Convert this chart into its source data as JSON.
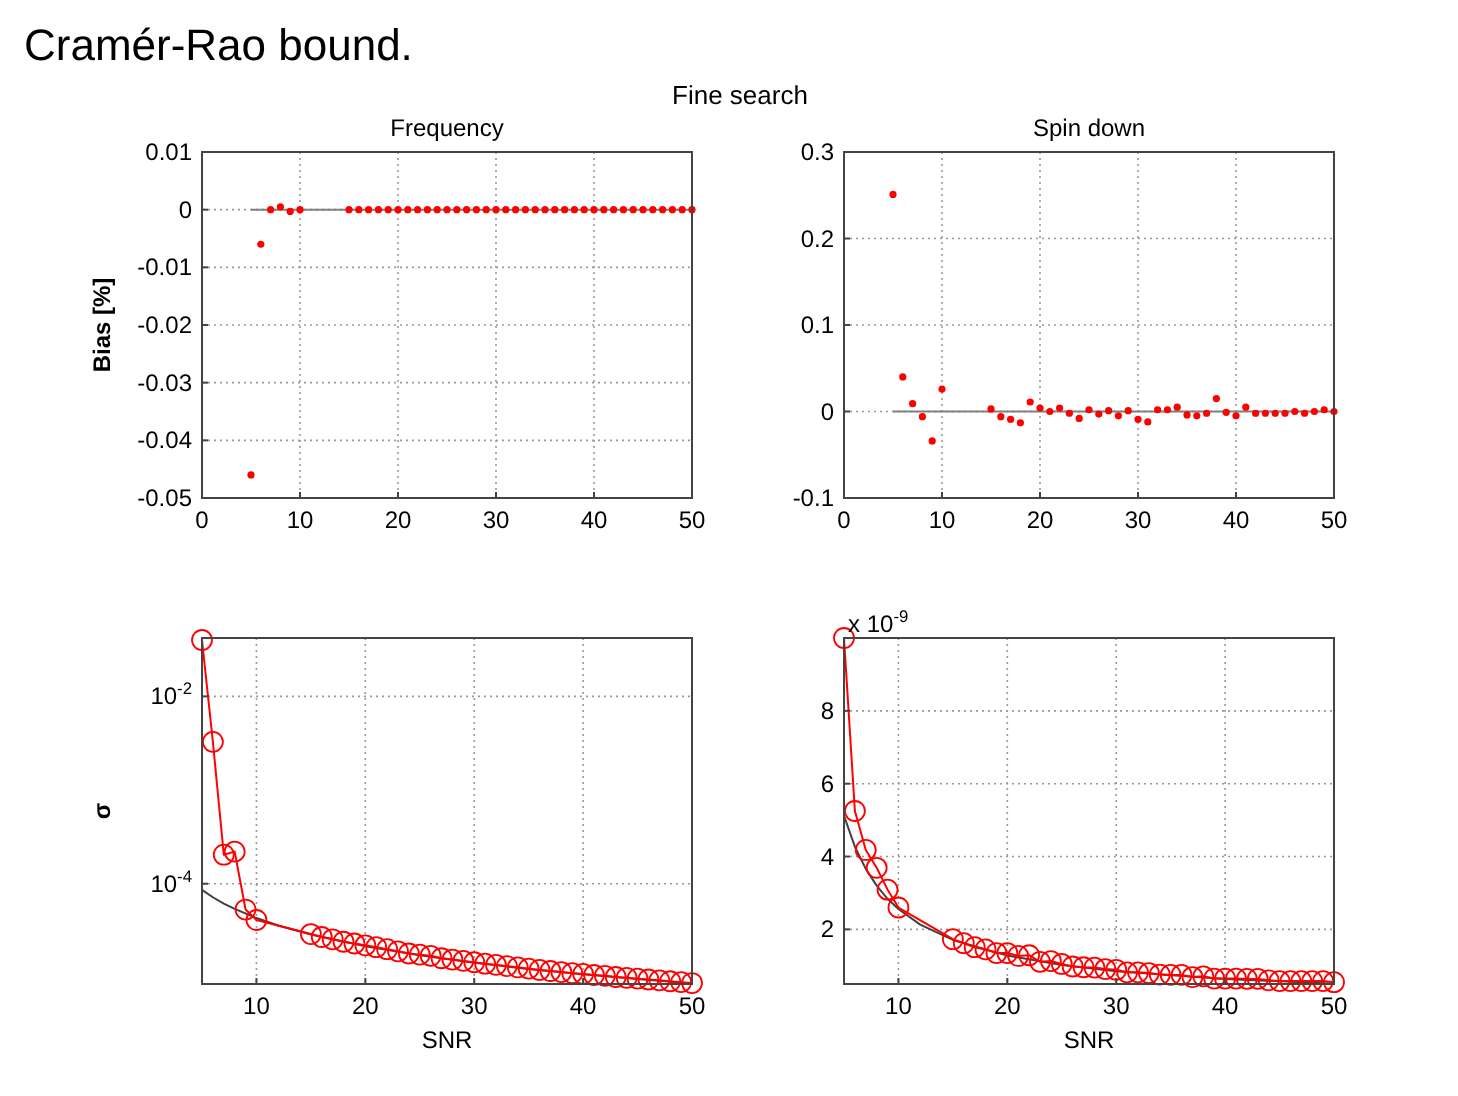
{
  "chart_data": [
    {
      "type": "scatter",
      "title": "Frequency",
      "ylabel": "Bias [%]",
      "annotations": [
        "Cramér-Rao bound.",
        "Fine search"
      ],
      "xlim": [
        0,
        50
      ],
      "xticks": [
        0,
        10,
        20,
        30,
        40,
        50
      ],
      "ylim": [
        -0.05,
        0.01
      ],
      "yticks": [
        -0.05,
        -0.04,
        -0.03,
        -0.02,
        -0.01,
        0,
        0.01
      ],
      "grid": true,
      "series": [
        {
          "type": "line",
          "color": "#808080",
          "marker": "none",
          "x": [
            5,
            50
          ],
          "values": [
            0,
            0
          ]
        },
        {
          "color": "#ff0000",
          "marker": "circle",
          "x": [
            5,
            6,
            7,
            8,
            9,
            10,
            15,
            16,
            17,
            18,
            19,
            20,
            21,
            22,
            23,
            24,
            25,
            26,
            27,
            28,
            29,
            30,
            31,
            32,
            33,
            34,
            35,
            36,
            37,
            38,
            39,
            40,
            41,
            42,
            43,
            44,
            45,
            46,
            47,
            48,
            49,
            50
          ],
          "values": [
            -0.046,
            -0.006,
            0,
            0.0005,
            -0.0003,
            0,
            0,
            0,
            0,
            0,
            0,
            0,
            0,
            0,
            0,
            0,
            0,
            0,
            0,
            0,
            0,
            0,
            0,
            0,
            0,
            0,
            0,
            0,
            0,
            0,
            0,
            0,
            0,
            0,
            0,
            0,
            0,
            0,
            0,
            0,
            0,
            0
          ]
        }
      ]
    },
    {
      "type": "scatter",
      "title": "Spin down",
      "xlim": [
        0,
        50
      ],
      "xticks": [
        0,
        10,
        20,
        30,
        40,
        50
      ],
      "ylim": [
        -0.1,
        0.3
      ],
      "yticks": [
        -0.1,
        0,
        0.1,
        0.2,
        0.3
      ],
      "grid": true,
      "series": [
        {
          "type": "line",
          "color": "#808080",
          "marker": "none",
          "x": [
            5,
            50
          ],
          "values": [
            0,
            0
          ]
        },
        {
          "color": "#ff0000",
          "marker": "circle",
          "x": [
            5,
            6,
            7,
            8,
            9,
            10,
            15,
            16,
            17,
            18,
            19,
            20,
            21,
            22,
            23,
            24,
            25,
            26,
            27,
            28,
            29,
            30,
            31,
            32,
            33,
            34,
            35,
            36,
            37,
            38,
            39,
            40,
            41,
            42,
            43,
            44,
            45,
            46,
            47,
            48,
            49,
            50
          ],
          "values": [
            0.251,
            0.04,
            0.009,
            -0.006,
            -0.034,
            0.026,
            0.003,
            -0.006,
            -0.009,
            -0.013,
            0.011,
            0.004,
            0,
            0.004,
            -0.002,
            -0.008,
            0.002,
            -0.003,
            0.001,
            -0.005,
            0.001,
            -0.009,
            -0.012,
            0.002,
            0.002,
            0.005,
            -0.004,
            -0.005,
            -0.002,
            0.015,
            -0.001,
            -0.005,
            0.005,
            -0.002,
            -0.002,
            -0.002,
            -0.002,
            0,
            -0.002,
            0,
            0.002,
            0
          ]
        }
      ]
    },
    {
      "type": "line",
      "xlabel": "SNR",
      "ylabel": "σ",
      "log": true,
      "xlim": [
        5,
        50
      ],
      "xticks": [
        10,
        20,
        30,
        40,
        50
      ],
      "ylim": [
        8.5e-06,
        0.042
      ],
      "yticks": [
        {
          "value": 0.0001,
          "label": "10$^{-4}$"
        },
        {
          "value": 0.01,
          "label": "10$^{-2}$"
        }
      ],
      "grid": true,
      "series": [
        {
          "color": "#404040",
          "marker": "none",
          "x": [
            5,
            6,
            7,
            8,
            10,
            12,
            15,
            20,
            25,
            30,
            35,
            40,
            45,
            50
          ],
          "values": [
            8.6e-05,
            7.17e-05,
            6.14e-05,
            5.38e-05,
            4.3e-05,
            3.58e-05,
            2.87e-05,
            2.15e-05,
            1.72e-05,
            1.43e-05,
            1.23e-05,
            1.08e-05,
            9.6e-06,
            8.6e-06
          ]
        },
        {
          "color": "#ff0000",
          "marker": "circle",
          "x": [
            5,
            6,
            7,
            8,
            9,
            10,
            15,
            16,
            17,
            18,
            19,
            20,
            21,
            22,
            23,
            24,
            25,
            26,
            27,
            28,
            29,
            30,
            31,
            32,
            33,
            34,
            35,
            36,
            37,
            38,
            39,
            40,
            41,
            42,
            43,
            44,
            45,
            46,
            47,
            48,
            49,
            50
          ],
          "values": [
            0.04,
            0.00327,
            0.000204,
            0.00022,
            5.3e-05,
            4.1e-05,
            2.9e-05,
            2.7e-05,
            2.55e-05,
            2.4e-05,
            2.3e-05,
            2.2e-05,
            2.1e-05,
            2e-05,
            1.9e-05,
            1.8e-05,
            1.75e-05,
            1.7e-05,
            1.6e-05,
            1.55e-05,
            1.5e-05,
            1.45e-05,
            1.4e-05,
            1.36e-05,
            1.32e-05,
            1.28e-05,
            1.24e-05,
            1.2e-05,
            1.17e-05,
            1.14e-05,
            1.11e-05,
            1.09e-05,
            1.06e-05,
            1.04e-05,
            1.01e-05,
            9.9e-06,
            9.7e-06,
            9.5e-06,
            9.3e-06,
            9.1e-06,
            8.9e-06,
            8.7e-06
          ]
        }
      ]
    },
    {
      "type": "line",
      "xlabel": "SNR",
      "annotations": [
        "x 10$^{-9}$"
      ],
      "xlim": [
        5,
        50
      ],
      "xticks": [
        10,
        20,
        30,
        40,
        50
      ],
      "ylim": [
        0.5,
        10
      ],
      "yticks": [
        2,
        4,
        6,
        8
      ],
      "grid": true,
      "series": [
        {
          "color": "#404040",
          "marker": "none",
          "x": [
            5,
            6,
            7,
            8,
            9,
            10,
            12,
            15,
            20,
            25,
            30,
            40,
            50
          ],
          "values": [
            5.12,
            4.27,
            3.66,
            3.2,
            2.84,
            2.56,
            2.13,
            1.71,
            1.28,
            1.02,
            0.85,
            0.64,
            0.51
          ]
        },
        {
          "color": "#ff0000",
          "marker": "circle",
          "x": [
            5,
            6,
            7,
            8,
            9,
            10,
            15,
            16,
            17,
            18,
            19,
            20,
            21,
            22,
            23,
            24,
            25,
            26,
            27,
            28,
            29,
            30,
            31,
            32,
            33,
            34,
            35,
            36,
            37,
            38,
            39,
            40,
            41,
            42,
            43,
            44,
            45,
            46,
            47,
            48,
            49,
            50
          ],
          "values": [
            10,
            5.25,
            4.18,
            3.69,
            3.09,
            2.6,
            1.73,
            1.62,
            1.51,
            1.45,
            1.35,
            1.35,
            1.27,
            1.29,
            1.11,
            1.13,
            1.05,
            0.98,
            0.96,
            0.95,
            0.91,
            0.89,
            0.82,
            0.82,
            0.8,
            0.76,
            0.75,
            0.75,
            0.69,
            0.71,
            0.65,
            0.65,
            0.65,
            0.64,
            0.64,
            0.6,
            0.58,
            0.58,
            0.58,
            0.58,
            0.58,
            0.55
          ]
        }
      ]
    }
  ]
}
